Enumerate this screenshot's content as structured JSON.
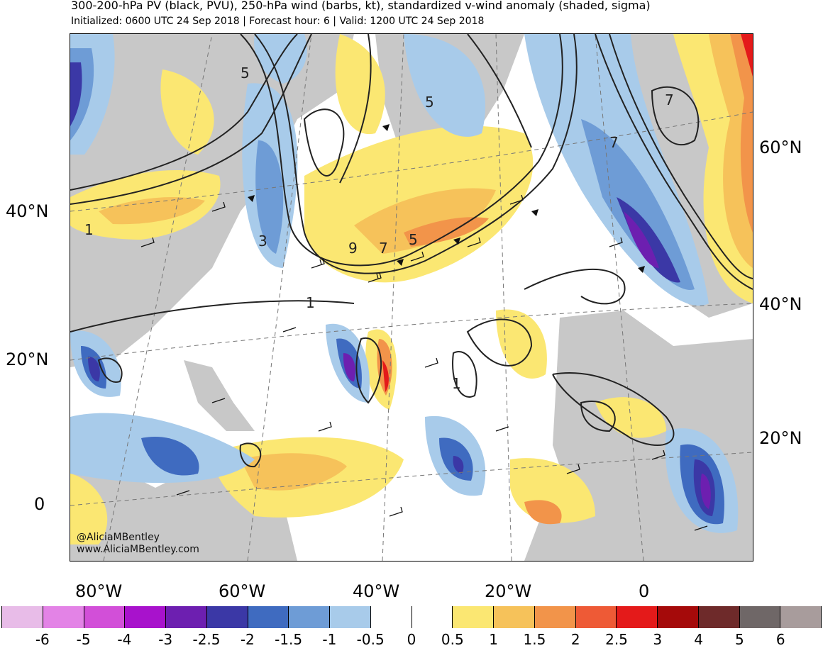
{
  "header": {
    "title": "300-200-hPa PV (black, PVU), 250-hPa wind (barbs, kt), standardized v-wind anomaly (shaded, sigma)",
    "subtitle": "Initialized: 0600 UTC 24 Sep 2018 | Forecast hour: 6 | Valid: 1200 UTC 24 Sep 2018"
  },
  "map": {
    "lat_labels_left": [
      "40°N",
      "20°N",
      "0"
    ],
    "lat_labels_right": [
      "60°N",
      "40°N",
      "20°N"
    ],
    "lon_labels": [
      "80°W",
      "60°W",
      "40°W",
      "20°W",
      "0"
    ],
    "contour_labels": [
      "5",
      "5",
      "7",
      "1",
      "3",
      "9",
      "7",
      "5",
      "1",
      "1",
      "7"
    ],
    "credit_handle": "@AliciaMBentley",
    "credit_site": "www.AliciaMBentley.com"
  },
  "colorbar": {
    "labels": [
      "-6",
      "-5",
      "-4",
      "-3",
      "-2.5",
      "-2",
      "-1.5",
      "-1",
      "-0.5",
      "0",
      "0.5",
      "1",
      "1.5",
      "2",
      "2.5",
      "3",
      "4",
      "5",
      "6"
    ],
    "colors": [
      "#e8bce8",
      "#e383e6",
      "#d24fd8",
      "#a812cc",
      "#6d1fb0",
      "#3b38a6",
      "#3f6bc0",
      "#6e9cd6",
      "#a8cbea",
      "#ffffff",
      "#ffffff",
      "#fbe772",
      "#f6c25a",
      "#f2944a",
      "#ee5a36",
      "#e41a1a",
      "#a50a0a",
      "#6e2a2a",
      "#6f6767",
      "#a89c9c"
    ]
  },
  "colors": {
    "land": "#c8c8c8",
    "ocean": "#ffffff",
    "contour": "#222222"
  }
}
